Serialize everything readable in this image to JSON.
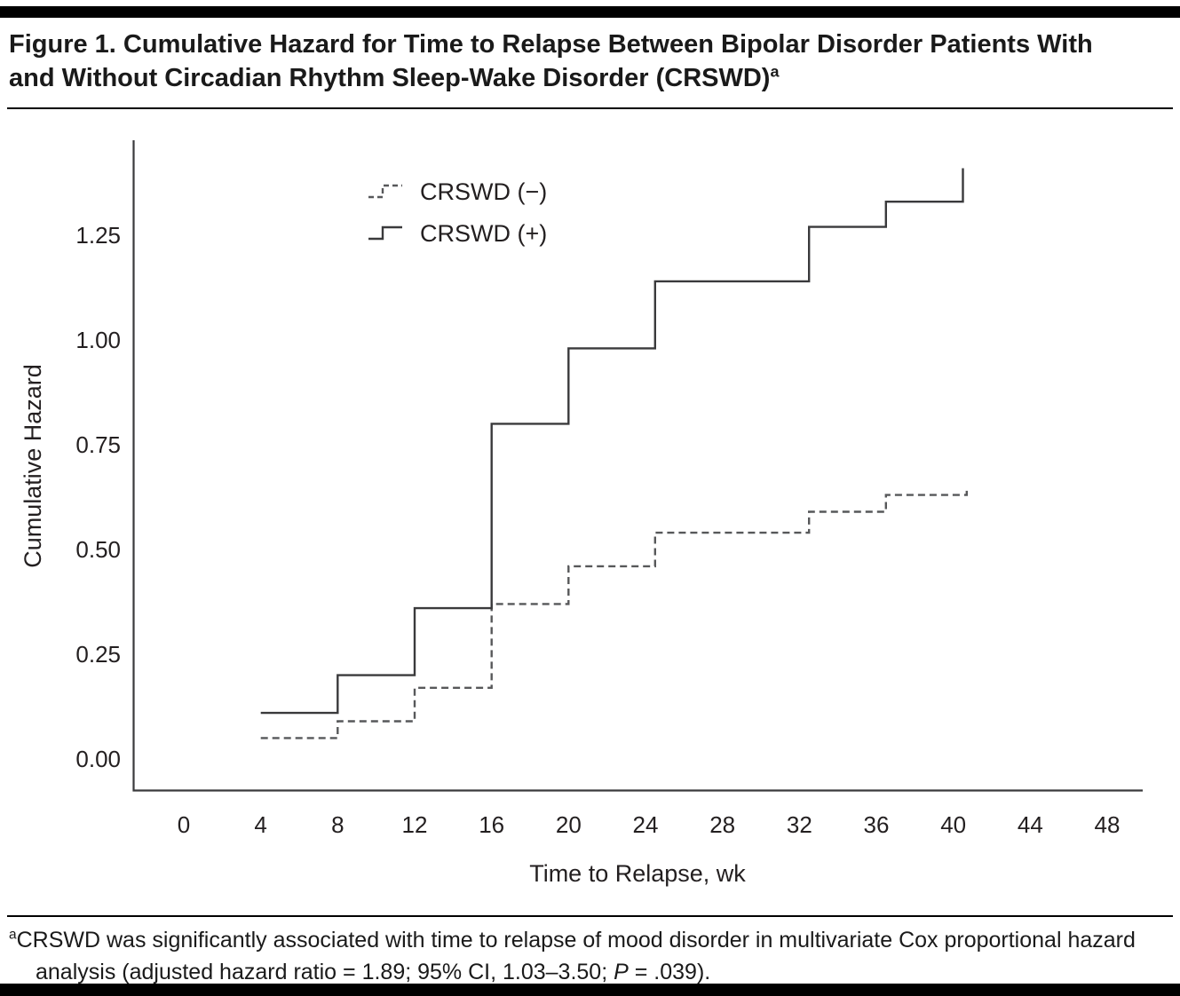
{
  "header": {
    "title": "Figure 1. Cumulative Hazard for Time to Relapse Between Bipolar Disorder Patients With and Without Circadian Rhythm Sleep-Wake Disorder (CRSWD)",
    "title_superscript": "a"
  },
  "footnote": {
    "superscript": "a",
    "text_before_p": "CRSWD was significantly associated with time to relapse of mood disorder in multivariate Cox proportional hazard analysis (adjusted hazard ratio = 1.89; 95% CI, 1.03–3.50; ",
    "p_label": "P",
    "text_after_p": " = .039)."
  },
  "chart_data": {
    "type": "line",
    "subtype": "step-function-cumulative-hazard",
    "title": "Cumulative Hazard for Time to Relapse Between Bipolar Disorder Patients With and Without Circadian Rhythm Sleep-Wake Disorder",
    "xlabel": "Time to Relapse, wk",
    "ylabel": "Cumulative Hazard",
    "x_ticks": [
      "0",
      "4",
      "8",
      "12",
      "16",
      "20",
      "24",
      "28",
      "32",
      "36",
      "40",
      "44",
      "48"
    ],
    "y_ticks": [
      "0.00",
      "0.25",
      "0.50",
      "0.75",
      "1.00",
      "1.25"
    ],
    "xlim": [
      0,
      48
    ],
    "ylim": [
      0,
      1.47
    ],
    "grid": false,
    "legend_position": "top-left-inside",
    "axis_color": "#3a3a3c",
    "series": [
      {
        "name": "crswd-negative",
        "label": "CRSWD (−)",
        "style": "dashed",
        "color": "#57585a",
        "points": [
          [
            4,
            0.05
          ],
          [
            8,
            0.09
          ],
          [
            12,
            0.17
          ],
          [
            16,
            0.37
          ],
          [
            20,
            0.46
          ],
          [
            24.5,
            0.54
          ],
          [
            32.5,
            0.59
          ],
          [
            36.5,
            0.63
          ],
          [
            40.7,
            0.64
          ]
        ]
      },
      {
        "name": "crswd-positive",
        "label": "CRSWD (+)",
        "style": "solid",
        "color": "#3a3a3c",
        "points": [
          [
            4,
            0.11
          ],
          [
            8,
            0.2
          ],
          [
            12,
            0.36
          ],
          [
            16,
            0.8
          ],
          [
            20,
            0.98
          ],
          [
            24.5,
            1.14
          ],
          [
            32.5,
            1.27
          ],
          [
            36.5,
            1.33
          ],
          [
            40.5,
            1.41
          ]
        ]
      }
    ]
  }
}
